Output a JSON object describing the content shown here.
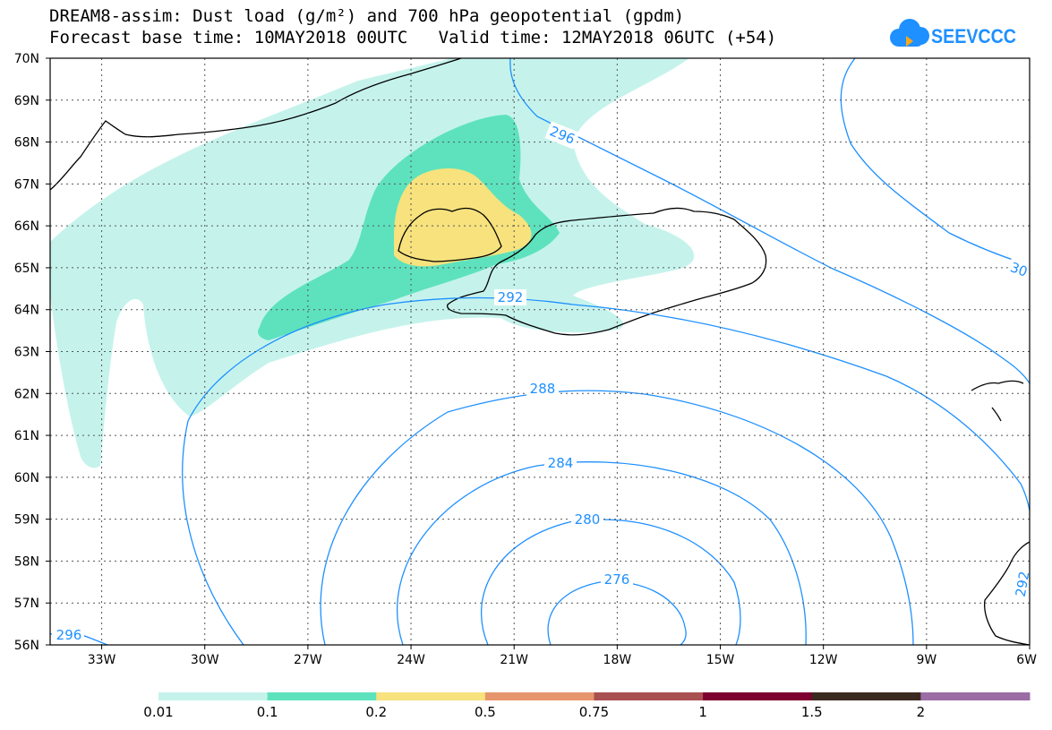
{
  "header": {
    "title_line1": "DREAM8-assim: Dust load (g/m²) and 700 hPa geopotential (gpdm)",
    "title_line2": "Forecast base time: 10MAY2018 00UTC   Valid time: 12MAY2018 06UTC (+54)",
    "logo_text": "SEEVCCC",
    "logo_color": "#1e90ff"
  },
  "map": {
    "lon_range": [
      -34.5,
      -6
    ],
    "lat_range": [
      56,
      70
    ],
    "lon_ticks": [
      -33,
      -30,
      -27,
      -24,
      -21,
      -18,
      -15,
      -12,
      -9,
      -6
    ],
    "lon_tick_labels": [
      "33W",
      "30W",
      "27W",
      "24W",
      "21W",
      "18W",
      "15W",
      "12W",
      "9W",
      "6W"
    ],
    "lat_ticks": [
      56,
      57,
      58,
      59,
      60,
      61,
      62,
      63,
      64,
      65,
      66,
      67,
      68,
      69,
      70
    ],
    "lat_tick_labels": [
      "56N",
      "57N",
      "58N",
      "59N",
      "60N",
      "61N",
      "62N",
      "63N",
      "64N",
      "65N",
      "66N",
      "67N",
      "68N",
      "69N",
      "70N"
    ],
    "grid": "dotted",
    "contour_color": "#1e90ff",
    "contour_labels": [
      "296",
      "292",
      "288",
      "284",
      "280",
      "276",
      "296",
      "30",
      "292"
    ]
  },
  "legend": {
    "colors": [
      "#c5f3ec",
      "#5ee2be",
      "#f7e27d",
      "#e7956c",
      "#a95050",
      "#7d0030",
      "#3b2a20",
      "#9b6da5"
    ],
    "labels": [
      "0.01",
      "0.1",
      "0.2",
      "0.5",
      "0.75",
      "1",
      "1.5",
      "2"
    ]
  }
}
